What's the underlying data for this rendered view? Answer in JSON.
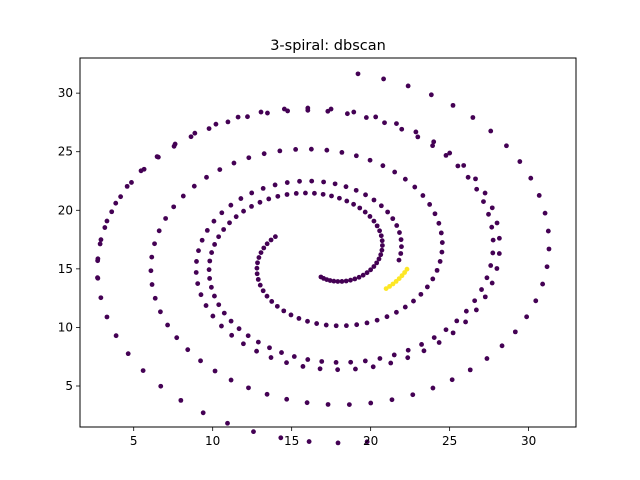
{
  "chart_data": {
    "type": "scatter",
    "title": "3-spiral: dbscan",
    "xlabel": "",
    "ylabel": "",
    "xlim": [
      1.6,
      33.0
    ],
    "ylim": [
      1.5,
      33.0
    ],
    "xticks": [
      5,
      10,
      15,
      20,
      25,
      30
    ],
    "yticks": [
      5,
      10,
      15,
      20,
      25,
      30
    ],
    "colors": {
      "cluster_0": "#440154",
      "cluster_1": "#fde725",
      "axes": "#000000",
      "background": "#ffffff"
    },
    "grid": false,
    "legend": "none",
    "spiral_params": {
      "center": [
        17.0,
        16.0
      ],
      "arms": [
        {
          "cluster": 0,
          "r0": 1.7,
          "r1": 14.4,
          "theta0_deg": -95,
          "theta1_deg": 547,
          "points": 112
        },
        {
          "cluster": 0,
          "r0": 3.5,
          "r1": 15.8,
          "theta0_deg": 150,
          "theta1_deg": 802,
          "points": 108
        },
        {
          "cluster": 0,
          "r0": 4.8,
          "r1": 16.0,
          "theta0_deg": 357,
          "theta1_deg": 1000,
          "points": 98
        },
        {
          "cluster": 1,
          "r0": 4.8,
          "r1": 5.4,
          "theta0_deg": 326,
          "theta1_deg": 349,
          "points": 8
        }
      ]
    }
  }
}
